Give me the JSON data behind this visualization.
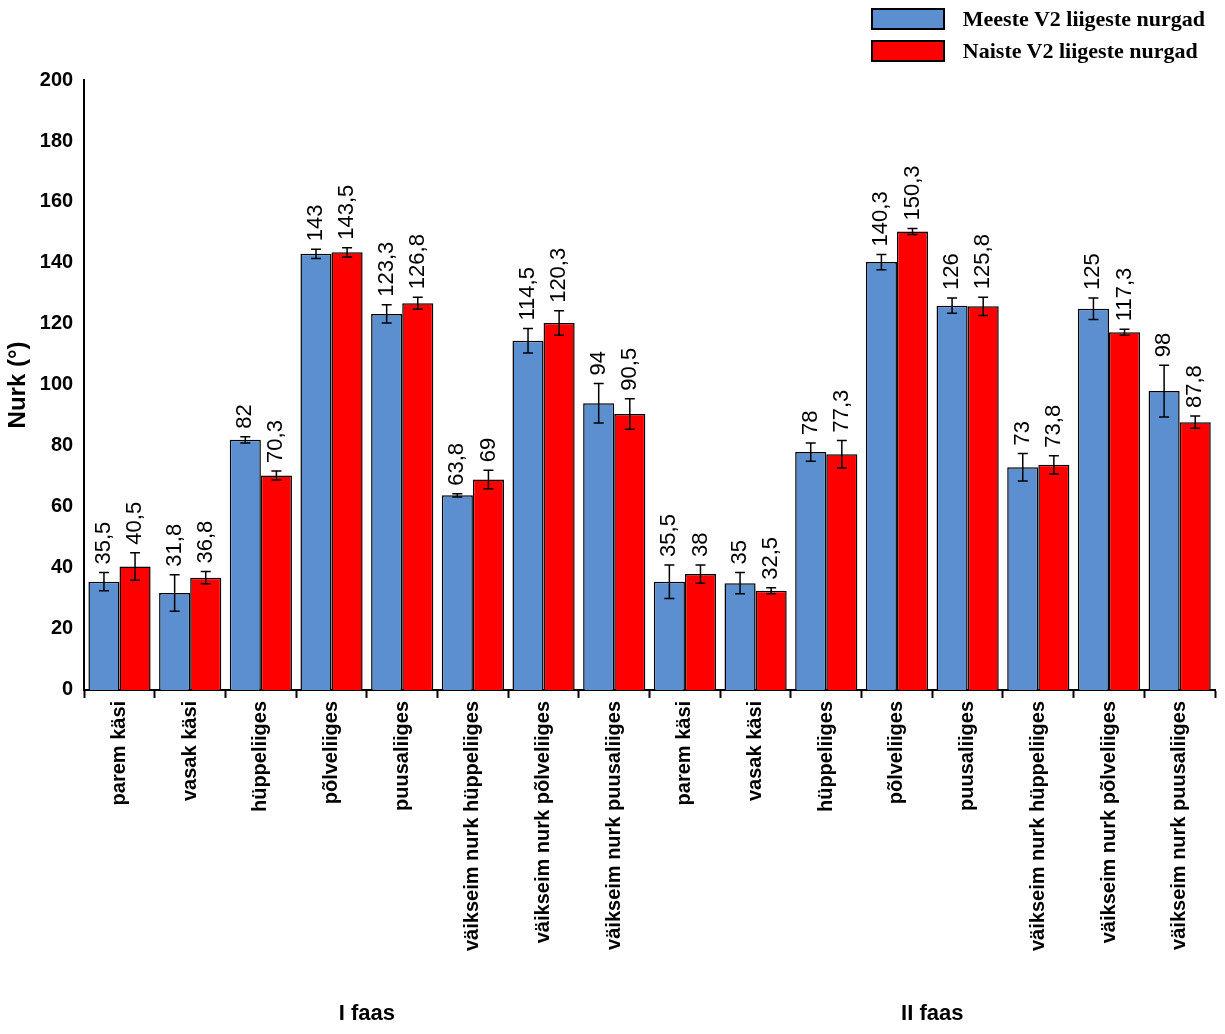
{
  "chart_data": {
    "type": "bar",
    "ylabel": "Nurk (°)",
    "categories": [
      "parem käsi",
      "vasak käsi",
      "hüppeliiges",
      "põlveliiges",
      "puusaliiges",
      "väikseim nurk hüppeliiges",
      "väikseim nurk põlveliiges",
      "väikseim nurk puusaliiges",
      "parem käsi",
      "vasak käsi",
      "hüppeliiges",
      "põlveliiges",
      "puusaliiges",
      "väikseim nurk hüppeliiges",
      "väikseim nurk põlveliiges",
      "väikseim nurk puusaliiges"
    ],
    "series": [
      {
        "name": "Meeste V2 liigeste nurgad",
        "color": "#5b8fd0",
        "values": [
          35.5,
          31.8,
          82,
          143,
          123.3,
          63.8,
          114.5,
          94,
          35.5,
          35,
          78,
          140.3,
          126,
          73,
          125,
          98
        ],
        "errors": [
          3,
          6,
          1,
          1.5,
          3,
          0.5,
          4,
          6.5,
          5.5,
          3.5,
          3,
          2.5,
          2.5,
          4.5,
          3.5,
          8.5
        ],
        "value_labels": [
          "35,5",
          "31,8",
          "82",
          "143",
          "123,3",
          "63,8",
          "114,5",
          "94",
          "35,5",
          "35",
          "78",
          "140,3",
          "126",
          "73",
          "125",
          "98"
        ]
      },
      {
        "name": "Naiste V2  liigeste nurgad",
        "color": "#ff0000",
        "values": [
          40.5,
          36.8,
          70.3,
          143.5,
          126.8,
          69,
          120.3,
          90.5,
          38,
          32.5,
          77.3,
          150.3,
          125.8,
          73.8,
          117.3,
          87.8
        ],
        "errors": [
          4.5,
          2,
          1.5,
          1.5,
          2,
          3,
          4,
          5,
          3,
          1,
          4.5,
          1,
          3,
          3,
          1,
          2
        ],
        "value_labels": [
          "40,5",
          "36,8",
          "70,3",
          "143,5",
          "126,8",
          "69",
          "120,3",
          "90,5",
          "38",
          "32,5",
          "77,3",
          "150,3",
          "125,8",
          "73,8",
          "117,3",
          "87,8"
        ]
      }
    ],
    "ylim": [
      0,
      200
    ],
    "yticks": [
      0,
      20,
      40,
      60,
      80,
      100,
      120,
      140,
      160,
      180,
      200
    ],
    "legend": "top right",
    "annotations": [
      "I faas",
      "II faas"
    ]
  }
}
